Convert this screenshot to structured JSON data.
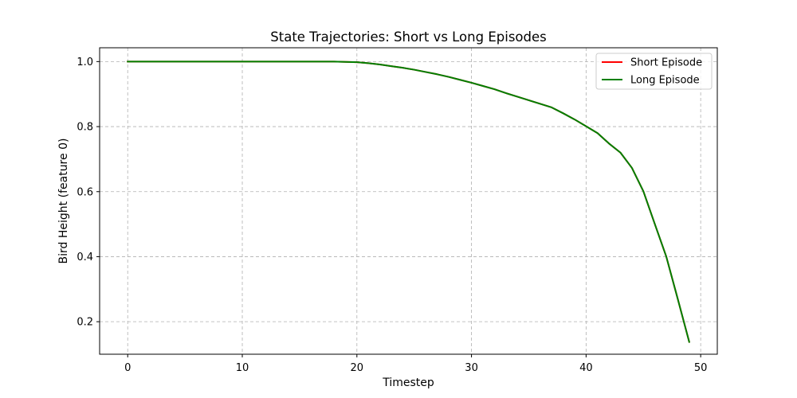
{
  "chart_data": {
    "type": "line",
    "title": "State Trajectories: Short vs Long Episodes",
    "xlabel": "Timestep",
    "ylabel": "Bird Height (feature 0)",
    "xlim": [
      -2.45,
      51.45
    ],
    "ylim": [
      0.1,
      1.0425
    ],
    "xticks": [
      0,
      10,
      20,
      30,
      40,
      50
    ],
    "yticks": [
      0.2,
      0.4,
      0.6,
      0.8,
      1.0
    ],
    "xtick_labels": [
      "0",
      "10",
      "20",
      "30",
      "40",
      "50"
    ],
    "ytick_labels": [
      "0.2",
      "0.4",
      "0.6",
      "0.8",
      "1.0"
    ],
    "grid": true,
    "legend_position": "top-right",
    "x": [
      0,
      1,
      2,
      3,
      4,
      5,
      6,
      7,
      8,
      9,
      10,
      11,
      12,
      13,
      14,
      15,
      16,
      17,
      18,
      19,
      20,
      21,
      22,
      23,
      24,
      25,
      26,
      27,
      28,
      29,
      30,
      31,
      32,
      33,
      34,
      35,
      36,
      37,
      38,
      39,
      40,
      41,
      42,
      43,
      44,
      45,
      46,
      47,
      48,
      49
    ],
    "series": [
      {
        "name": "Short Episode",
        "color": "#ff0000",
        "values": [
          1.0,
          1.0,
          1.0,
          1.0,
          1.0,
          1.0,
          1.0,
          1.0,
          1.0,
          1.0,
          1.0,
          1.0,
          1.0,
          1.0,
          1.0,
          1.0,
          1.0,
          1.0,
          1.0,
          0.999,
          0.998,
          0.995,
          0.991,
          0.986,
          0.981,
          0.975,
          0.968,
          0.961,
          0.953,
          0.944,
          0.935,
          0.925,
          0.915,
          0.903,
          0.892,
          0.881,
          0.87,
          0.859,
          0.841,
          0.822,
          0.801,
          0.78,
          0.748,
          0.72,
          0.673,
          0.601,
          0.5,
          0.4,
          0.27,
          0.138
        ]
      },
      {
        "name": "Long Episode",
        "color": "#008000",
        "values": [
          1.0,
          1.0,
          1.0,
          1.0,
          1.0,
          1.0,
          1.0,
          1.0,
          1.0,
          1.0,
          1.0,
          1.0,
          1.0,
          1.0,
          1.0,
          1.0,
          1.0,
          1.0,
          1.0,
          0.999,
          0.998,
          0.995,
          0.991,
          0.986,
          0.981,
          0.975,
          0.968,
          0.961,
          0.953,
          0.944,
          0.935,
          0.925,
          0.915,
          0.903,
          0.892,
          0.881,
          0.87,
          0.859,
          0.841,
          0.822,
          0.801,
          0.78,
          0.748,
          0.72,
          0.673,
          0.601,
          0.5,
          0.4,
          0.27,
          0.138
        ]
      }
    ]
  }
}
